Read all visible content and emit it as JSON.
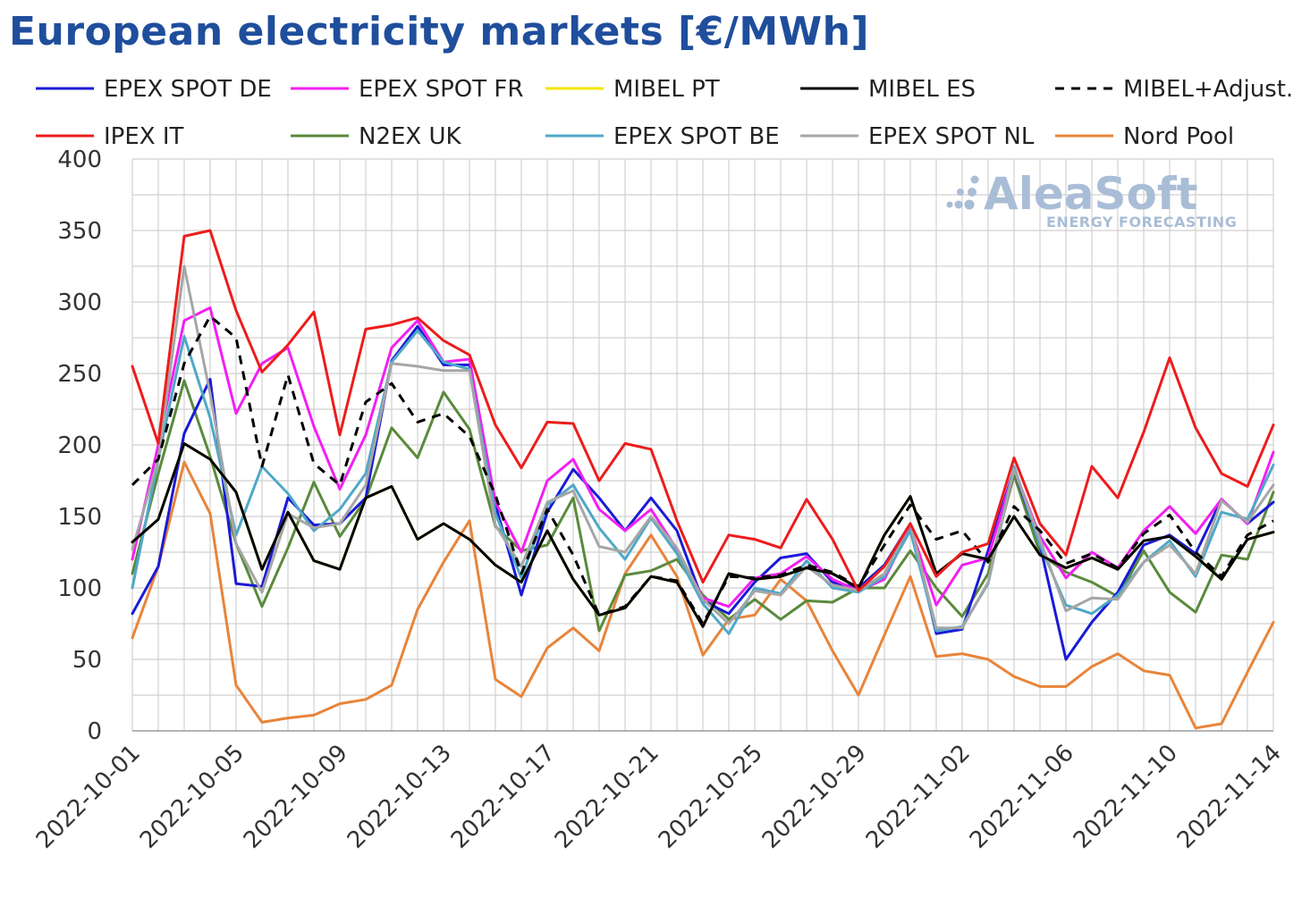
{
  "chart_data": {
    "type": "line",
    "title": "European electricity markets [€/MWh]",
    "xlabel": "",
    "ylabel": "",
    "ylim": [
      0,
      400
    ],
    "yticks": [
      0,
      50,
      100,
      150,
      200,
      250,
      300,
      350,
      400
    ],
    "grid": true,
    "legend_position": "top",
    "watermark": {
      "brand": "AleaSoft",
      "tagline": "ENERGY FORECASTING"
    },
    "x": [
      "2022-10-01",
      "2022-10-02",
      "2022-10-03",
      "2022-10-04",
      "2022-10-05",
      "2022-10-06",
      "2022-10-07",
      "2022-10-08",
      "2022-10-09",
      "2022-10-10",
      "2022-10-11",
      "2022-10-12",
      "2022-10-13",
      "2022-10-14",
      "2022-10-15",
      "2022-10-16",
      "2022-10-17",
      "2022-10-18",
      "2022-10-19",
      "2022-10-20",
      "2022-10-21",
      "2022-10-22",
      "2022-10-23",
      "2022-10-24",
      "2022-10-25",
      "2022-10-26",
      "2022-10-27",
      "2022-10-28",
      "2022-10-29",
      "2022-10-30",
      "2022-10-31",
      "2022-11-01",
      "2022-11-02",
      "2022-11-03",
      "2022-11-04",
      "2022-11-05",
      "2022-11-06",
      "2022-11-07",
      "2022-11-08",
      "2022-11-09",
      "2022-11-10",
      "2022-11-11",
      "2022-11-12",
      "2022-11-13",
      "2022-11-14"
    ],
    "x_tick_labels": [
      "2022-10-01",
      "2022-10-05",
      "2022-10-09",
      "2022-10-13",
      "2022-10-17",
      "2022-10-21",
      "2022-10-25",
      "2022-10-29",
      "2022-11-02",
      "2022-11-06",
      "2022-11-10",
      "2022-11-14"
    ],
    "series": [
      {
        "name": "Nord Pool",
        "color": "#e8843a",
        "dashed": false,
        "values": [
          65,
          115,
          188,
          152,
          32,
          6,
          9,
          11,
          19,
          22,
          32,
          85,
          118,
          147,
          36,
          24,
          58,
          72,
          56,
          110,
          137,
          108,
          53,
          78,
          81,
          106,
          91,
          56,
          25,
          67,
          108,
          52,
          54,
          50,
          38,
          31,
          31,
          45,
          54,
          42,
          39,
          2,
          5,
          41,
          76
        ]
      },
      {
        "name": "N2EX UK",
        "color": "#5a8a3c",
        "dashed": false,
        "values": [
          110,
          180,
          245,
          192,
          131,
          87,
          128,
          174,
          136,
          162,
          212,
          191,
          237,
          211,
          143,
          126,
          130,
          163,
          70,
          109,
          112,
          120,
          95,
          78,
          92,
          78,
          91,
          90,
          100,
          100,
          126,
          100,
          80,
          110,
          179,
          124,
          111,
          104,
          94,
          126,
          97,
          83,
          123,
          120,
          167
        ]
      },
      {
        "name": "EPEX SPOT DE",
        "color": "#1a1ad6",
        "dashed": false,
        "values": [
          82,
          115,
          208,
          246,
          103,
          101,
          163,
          144,
          145,
          163,
          259,
          283,
          256,
          256,
          158,
          95,
          153,
          183,
          163,
          140,
          163,
          140,
          91,
          82,
          104,
          121,
          124,
          104,
          100,
          116,
          145,
          68,
          71,
          126,
          183,
          130,
          50,
          76,
          97,
          130,
          137,
          124,
          162,
          145,
          160
        ]
      },
      {
        "name": "EPEX SPOT FR",
        "color": "#f21ff2",
        "dashed": false,
        "values": [
          120,
          200,
          287,
          296,
          222,
          257,
          268,
          213,
          169,
          207,
          268,
          287,
          258,
          260,
          160,
          125,
          175,
          190,
          155,
          140,
          155,
          127,
          93,
          87,
          107,
          110,
          122,
          106,
          98,
          106,
          143,
          88,
          116,
          121,
          183,
          136,
          107,
          125,
          114,
          140,
          157,
          138,
          162,
          145,
          195
        ]
      },
      {
        "name": "EPEX SPOT BE",
        "color": "#4fa8c8",
        "dashed": false,
        "values": [
          100,
          190,
          276,
          219,
          137,
          185,
          166,
          140,
          155,
          180,
          258,
          280,
          258,
          253,
          152,
          107,
          158,
          172,
          142,
          120,
          149,
          124,
          89,
          68,
          100,
          96,
          119,
          100,
          97,
          108,
          140,
          70,
          73,
          103,
          185,
          130,
          88,
          82,
          95,
          118,
          133,
          108,
          153,
          148,
          186
        ]
      },
      {
        "name": "EPEX SPOT NL",
        "color": "#a6a6a6",
        "dashed": false,
        "values": [
          127,
          190,
          325,
          236,
          131,
          97,
          152,
          142,
          145,
          172,
          257,
          255,
          252,
          252,
          144,
          115,
          160,
          168,
          129,
          125,
          150,
          128,
          92,
          75,
          98,
          95,
          115,
          102,
          98,
          110,
          145,
          72,
          72,
          104,
          183,
          134,
          84,
          93,
          92,
          118,
          130,
          110,
          161,
          146,
          172
        ]
      },
      {
        "name": "MIBEL PT",
        "color": "#f2e600",
        "dashed": false,
        "values": [
          132,
          148,
          201,
          190,
          167,
          113,
          153,
          119,
          113,
          163,
          171,
          134,
          145,
          134,
          116,
          104,
          140,
          106,
          81,
          86,
          108,
          104,
          73,
          110,
          106,
          108,
          114,
          110,
          100,
          137,
          164,
          110,
          124,
          120,
          150,
          123,
          114,
          121,
          113,
          133,
          136,
          122,
          106,
          134,
          139
        ]
      },
      {
        "name": "MIBEL ES",
        "color": "#000000",
        "dashed": false,
        "values": [
          132,
          148,
          201,
          190,
          167,
          113,
          153,
          119,
          113,
          163,
          171,
          134,
          145,
          134,
          116,
          104,
          140,
          106,
          81,
          86,
          108,
          104,
          73,
          110,
          106,
          108,
          114,
          110,
          100,
          137,
          164,
          110,
          124,
          120,
          150,
          123,
          114,
          121,
          113,
          133,
          136,
          122,
          106,
          134,
          139
        ]
      },
      {
        "name": "MIBEL+Adjust.",
        "color": "#000000",
        "dashed": true,
        "values": [
          172,
          190,
          257,
          290,
          275,
          185,
          249,
          187,
          172,
          230,
          243,
          216,
          222,
          206,
          165,
          110,
          155,
          123,
          81,
          87,
          108,
          105,
          75,
          108,
          107,
          109,
          116,
          111,
          101,
          130,
          158,
          134,
          140,
          118,
          157,
          140,
          117,
          124,
          114,
          138,
          151,
          125,
          108,
          137,
          147
        ]
      },
      {
        "name": "IPEX IT",
        "color": "#ed1c1c",
        "dashed": false,
        "values": [
          255,
          201,
          346,
          350,
          294,
          251,
          270,
          293,
          207,
          281,
          284,
          289,
          273,
          263,
          214,
          184,
          216,
          215,
          175,
          201,
          197,
          147,
          104,
          137,
          134,
          128,
          162,
          134,
          98,
          115,
          145,
          108,
          125,
          131,
          191,
          145,
          123,
          185,
          163,
          209,
          261,
          212,
          180,
          171,
          214
        ]
      }
    ]
  },
  "legend": {
    "rows": [
      [
        {
          "label": "EPEX SPOT DE",
          "color": "#1a1ad6",
          "dashed": false
        },
        {
          "label": "EPEX SPOT FR",
          "color": "#f21ff2",
          "dashed": false
        },
        {
          "label": "MIBEL PT",
          "color": "#f2e600",
          "dashed": false
        },
        {
          "label": "MIBEL ES",
          "color": "#000000",
          "dashed": false
        },
        {
          "label": "MIBEL+Adjust.",
          "color": "#000000",
          "dashed": true
        }
      ],
      [
        {
          "label": "IPEX IT",
          "color": "#ed1c1c",
          "dashed": false
        },
        {
          "label": "N2EX UK",
          "color": "#5a8a3c",
          "dashed": false
        },
        {
          "label": "EPEX SPOT BE",
          "color": "#4fa8c8",
          "dashed": false
        },
        {
          "label": "EPEX SPOT NL",
          "color": "#a6a6a6",
          "dashed": false
        },
        {
          "label": "Nord Pool",
          "color": "#e8843a",
          "dashed": false
        }
      ]
    ]
  }
}
